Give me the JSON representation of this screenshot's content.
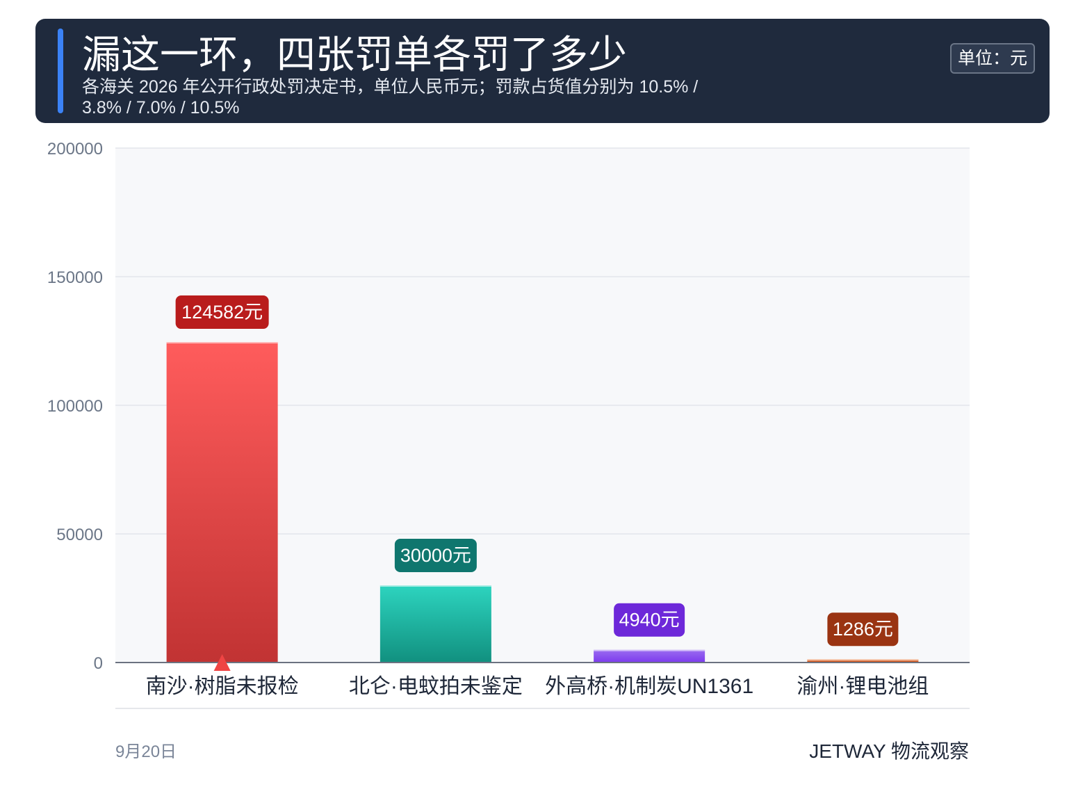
{
  "header": {
    "title": "漏这一环，四张罚单各罚了多少",
    "subtitle": "各海关 2026 年公开行政处罚决定书，单位人民币元；罚款占货值分别为 10.5% / 3.8% / 7.0% / 10.5%",
    "unit_badge": "单位：元"
  },
  "chart_data": {
    "type": "bar",
    "categories": [
      "南沙·树脂未报检",
      "北仑·电蚊拍未鉴定",
      "外高桥·机制炭UN1361",
      "渝州·锂电池组"
    ],
    "values": [
      124582,
      30000,
      4940,
      1286
    ],
    "data_labels": [
      "124582元",
      "30000元",
      "4940元",
      "1286元"
    ],
    "y_ticks": [
      0,
      50000,
      100000,
      150000,
      200000
    ],
    "ylim": [
      0,
      200000
    ],
    "grid": true,
    "highlight_index": 0,
    "colors": [
      {
        "top": "#ff5c5c",
        "bottom": "#c13333",
        "label": "#b91c1c"
      },
      {
        "top": "#2dd4bf",
        "bottom": "#11907f",
        "label": "#0f766e"
      },
      {
        "top": "#9b6cf0",
        "bottom": "#7c3aed",
        "label": "#6d28d9"
      },
      {
        "top": "#f0884a",
        "bottom": "#c2410c",
        "label": "#9a3412"
      }
    ],
    "highlight_color": "#ef4444"
  },
  "footer": {
    "date": "9月20日",
    "brand": "JETWAY 物流观察"
  }
}
